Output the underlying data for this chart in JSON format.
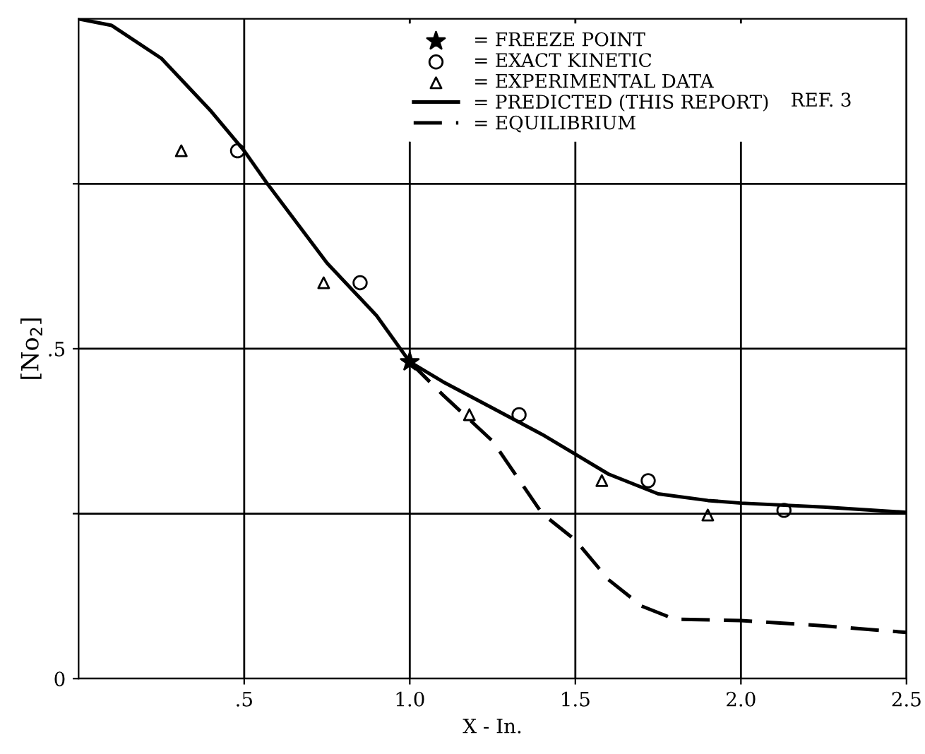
{
  "chart_data": {
    "type": "line",
    "xlabel": "X - In.",
    "ylabel": "[No$_{2}$]",
    "xlim": [
      0,
      2.5
    ],
    "ylim": [
      0,
      1.0
    ],
    "xticks": [
      {
        "value": 0.5,
        "label": ".5"
      },
      {
        "value": 1.0,
        "label": "1.0"
      },
      {
        "value": 1.5,
        "label": "1.5"
      },
      {
        "value": 2.0,
        "label": "2.0"
      },
      {
        "value": 2.5,
        "label": "2.5"
      }
    ],
    "yticks": [
      0,
      {
        "value": 0.25,
        "label": null
      },
      {
        "value": 0.5,
        "label": ".5"
      },
      {
        "value": 0.75,
        "label": null
      }
    ],
    "grid": true,
    "legend": "top right",
    "annotations": [
      "REF. 3"
    ],
    "series": [
      {
        "name": "= FREEZE POINT",
        "type": "scatter",
        "marker": "star",
        "color": "#000000",
        "x": [
          1.0
        ],
        "values": [
          0.48
        ]
      },
      {
        "name": "= EXACT KINETIC",
        "type": "scatter",
        "marker": "circle",
        "color": "#000000",
        "x": [
          0.48,
          0.85,
          1.33,
          1.72,
          2.13
        ],
        "values": [
          0.8,
          0.6,
          0.4,
          0.3,
          0.255
        ]
      },
      {
        "name": "= EXPERIMENTAL DATA",
        "type": "scatter",
        "marker": "triangle",
        "color": "#000000",
        "x": [
          0.31,
          0.74,
          1.18,
          1.58,
          1.9
        ],
        "values": [
          0.8,
          0.6,
          0.4,
          0.3,
          0.248
        ]
      },
      {
        "name": "= PREDICTED (THIS REPORT)",
        "line_style": "solid",
        "color": "#000000",
        "x": [
          0,
          0.1,
          0.25,
          0.4,
          0.5,
          0.57,
          0.75,
          0.9,
          1.0,
          1.1,
          1.25,
          1.4,
          1.5,
          1.6,
          1.75,
          1.9,
          2.0,
          2.25,
          2.5
        ],
        "values": [
          1.0,
          0.99,
          0.94,
          0.86,
          0.8,
          0.75,
          0.63,
          0.55,
          0.48,
          0.45,
          0.41,
          0.37,
          0.34,
          0.31,
          0.28,
          0.27,
          0.266,
          0.26,
          0.252
        ]
      },
      {
        "name": "= EQUILIBRIUM",
        "line_style": "dashed",
        "color": "#000000",
        "x": [
          1.0,
          1.1,
          1.25,
          1.4,
          1.5,
          1.6,
          1.7,
          1.8,
          2.0,
          2.25,
          2.5
        ],
        "values": [
          0.48,
          0.43,
          0.36,
          0.25,
          0.21,
          0.15,
          0.11,
          0.09,
          0.088,
          0.08,
          0.07
        ]
      }
    ]
  }
}
